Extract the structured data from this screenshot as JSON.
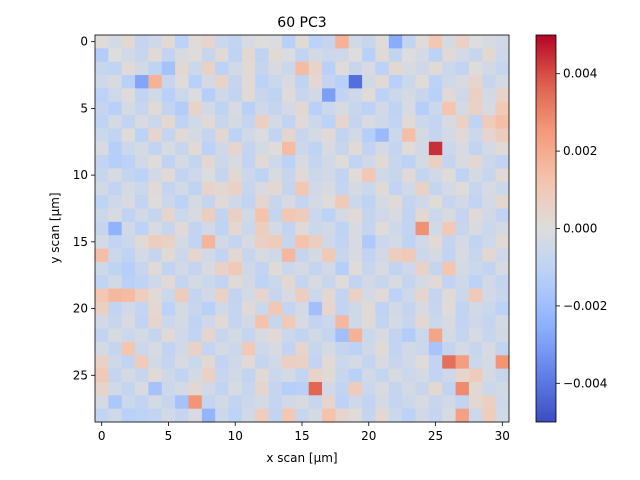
{
  "chart_data": {
    "type": "heatmap",
    "title": "60 PC3",
    "xlabel": "x scan [µm]",
    "ylabel": "y scan [µm]",
    "x_range": [
      0,
      30
    ],
    "y_range": [
      0,
      28
    ],
    "y_axis_inverted": true,
    "x_ticks": [
      "0",
      "5",
      "10",
      "15",
      "20",
      "25",
      "30"
    ],
    "y_ticks": [
      "0",
      "5",
      "10",
      "15",
      "20",
      "25"
    ],
    "colormap": "coolwarm",
    "vmin": -0.005,
    "vmax": 0.005,
    "colorbar_ticks": [
      "−0.004",
      "−0.002",
      "0.000",
      "0.002",
      "0.004"
    ],
    "colorbar_tick_values": [
      -0.004,
      -0.002,
      0.0,
      0.002,
      0.004
    ],
    "z": [
      [
        0.0001,
        -0.0003,
        0.0003,
        -0.0008,
        -0.0005,
        0.0002,
        -0.0011,
        0.0001,
        0.0004,
        -0.0006,
        -0.0009,
        -0.0002,
        0.0,
        -0.0001,
        -0.0012,
        0.0002,
        -0.0011,
        -0.0008,
        0.0018,
        -0.0004,
        -0.0007,
        0.0001,
        -0.0026,
        -0.0009,
        0.0001,
        0.0011,
        -0.0003,
        0.0006,
        0.0,
        -0.0002,
        -0.0004
      ],
      [
        -0.0014,
        0.0,
        -0.0004,
        -0.0007,
        0.0002,
        -0.0009,
        -0.0002,
        0.0001,
        -0.0007,
        0.0002,
        -0.001,
        0.0003,
        -0.001,
        0.0002,
        -0.0001,
        -0.0009,
        -0.0003,
        -0.0006,
        -0.0005,
        0.0,
        -0.0012,
        0.0002,
        -0.0009,
        0.0,
        -0.0003,
        -0.0011,
        0.0002,
        -0.0003,
        -0.0007,
        0.0003,
        -0.0005
      ],
      [
        -0.0007,
        -0.0009,
        0.0002,
        -0.0004,
        -0.001,
        -0.0018,
        0.0003,
        -0.0006,
        0.0006,
        -0.0011,
        -0.0004,
        0.0002,
        -0.0008,
        -0.0002,
        -0.0006,
        0.0015,
        0.0005,
        -0.0012,
        0.0001,
        -0.0007,
        -0.0002,
        -0.0011,
        0.0003,
        -0.0002,
        -0.0005,
        0.0002,
        -0.0006,
        -0.0009,
        0.0001,
        -0.0004,
        -0.0007
      ],
      [
        -0.0005,
        -0.0002,
        -0.0012,
        -0.0028,
        0.0018,
        -0.0007,
        0.0001,
        -0.0012,
        -0.0003,
        0.0005,
        -0.0008,
        0.0002,
        -0.0011,
        -0.0006,
        -0.0002,
        -0.001,
        0.0003,
        -0.0008,
        -0.0012,
        -0.0042,
        -0.0004,
        0.0002,
        -0.0012,
        -0.0006,
        0.0001,
        -0.0011,
        -0.0005,
        -0.0002,
        0.0004,
        -0.0007,
        -0.0003
      ],
      [
        -0.0011,
        -0.0005,
        0.0001,
        -0.0009,
        -0.0004,
        -0.0012,
        -0.0006,
        -0.0001,
        -0.0013,
        -0.0005,
        -0.0009,
        0.0002,
        -0.0007,
        -0.001,
        0.0001,
        -0.0007,
        -0.0004,
        -0.003,
        -0.0009,
        -0.0005,
        0.0001,
        -0.0011,
        -0.0006,
        -0.0003,
        -0.0007,
        -0.0012,
        0.0002,
        -0.0005,
        0.0007,
        -0.0003,
        0.0005
      ],
      [
        -0.0008,
        -0.0012,
        -0.0003,
        -0.0007,
        0.0002,
        -0.0009,
        -0.0014,
        0.0005,
        -0.0004,
        -0.001,
        -0.0002,
        -0.0012,
        -0.0005,
        -0.0008,
        -0.0003,
        0.0003,
        -0.0012,
        -0.0006,
        -0.0002,
        -0.0007,
        -0.0011,
        -0.0004,
        -0.001,
        -0.0002,
        -0.0013,
        -0.0006,
        0.0012,
        -0.0003,
        0.0006,
        -0.0002,
        0.001
      ],
      [
        -0.001,
        -0.0003,
        -0.0009,
        -0.0002,
        -0.0006,
        0.0003,
        -0.001,
        -0.0004,
        0.0002,
        -0.0007,
        -0.0003,
        -0.0008,
        0.0007,
        -0.0003,
        -0.0009,
        0.0002,
        -0.0006,
        -0.0011,
        0.0004,
        -0.0008,
        -0.0002,
        -0.0005,
        -0.0009,
        0.0002,
        -0.0006,
        -0.0008,
        -0.0002,
        0.0006,
        -0.001,
        0.0009,
        0.0014
      ],
      [
        -0.0006,
        -0.0009,
        0.0001,
        -0.0011,
        0.0004,
        -0.0008,
        0.0002,
        -0.0003,
        -0.0008,
        0.0003,
        -0.0011,
        -0.0004,
        -0.0001,
        -0.0009,
        0.0004,
        -0.0007,
        -0.0003,
        0.0002,
        -0.0009,
        -0.0004,
        -0.0013,
        -0.0021,
        -0.0006,
        0.0014,
        -0.0003,
        -0.0008,
        -0.0003,
        0.0002,
        -0.0006,
        0.0004,
        0.0009
      ],
      [
        -0.0002,
        -0.0013,
        -0.0006,
        -0.0003,
        -0.0009,
        -0.0002,
        -0.0007,
        0.0002,
        -0.0011,
        -0.0005,
        0.0004,
        -0.0008,
        -0.0003,
        0.0001,
        0.0015,
        -0.0006,
        -0.001,
        -0.0002,
        -0.0007,
        0.0002,
        -0.0009,
        -0.0003,
        -0.0008,
        0.0001,
        -0.0004,
        0.0044,
        -0.0006,
        -0.0002,
        -0.0009,
        -0.0003,
        0.0002
      ],
      [
        -0.0009,
        -0.0013,
        -0.0011,
        -0.0004,
        0.0001,
        -0.001,
        -0.0003,
        -0.0008,
        0.0003,
        -0.0006,
        -0.0002,
        -0.0009,
        0.0002,
        -0.0005,
        -0.0011,
        -0.0002,
        -0.0008,
        -0.0004,
        0.0001,
        -0.0009,
        -0.0005,
        0.0002,
        -0.0007,
        -0.0011,
        -0.0003,
        0.0007,
        -0.0008,
        -0.0002,
        0.0003,
        -0.0006,
        -0.0009
      ],
      [
        -0.0007,
        -0.0002,
        -0.0008,
        -0.0011,
        -0.0004,
        0.0002,
        -0.0009,
        -0.0005,
        -0.0001,
        -0.0008,
        0.0003,
        -0.0006,
        -0.001,
        -0.0002,
        -0.0007,
        0.0002,
        -0.0006,
        -0.0004,
        -0.0009,
        0.0001,
        0.0011,
        -0.0005,
        -0.0007,
        0.0002,
        -0.0008,
        -0.0004,
        0.0001,
        -0.001,
        -0.0003,
        -0.0007,
        0.0002
      ],
      [
        -0.0004,
        -0.0009,
        -0.0003,
        -0.0006,
        0.0002,
        -0.0008,
        -0.0004,
        -0.001,
        0.0005,
        0.0003,
        0.0006,
        -0.0007,
        -0.0002,
        0.0003,
        -0.0008,
        0.0011,
        -0.0004,
        -0.0002,
        -0.0008,
        -0.0003,
        -0.0006,
        0.0002,
        -0.0009,
        -0.0004,
        0.0006,
        -0.0008,
        -0.0003,
        0.0001,
        -0.0007,
        -0.0002,
        -0.0006
      ],
      [
        -0.001,
        -0.0005,
        -0.0002,
        -0.0009,
        0.0001,
        -0.0006,
        -0.0011,
        -0.0003,
        -0.0008,
        0.0002,
        -0.0005,
        -0.0009,
        0.0004,
        -0.0007,
        -0.0002,
        -0.0008,
        -0.0003,
        0.0001,
        0.001,
        -0.0006,
        -0.001,
        -0.0003,
        0.0002,
        -0.0008,
        -0.0005,
        0.0001,
        -0.0007,
        -0.0004,
        -0.0009,
        -0.0003,
        0.0003
      ],
      [
        -0.0006,
        -0.0002,
        -0.001,
        -0.0004,
        -0.0008,
        0.0004,
        -0.0006,
        -0.0002,
        0.0008,
        -0.0009,
        0.0007,
        -0.0004,
        0.0013,
        -0.0008,
        0.0011,
        0.0009,
        -0.0006,
        -0.0011,
        -0.0003,
        0.0002,
        -0.0008,
        -0.0005,
        -0.0002,
        -0.0009,
        0.0003,
        -0.0006,
        -0.0002,
        -0.0008,
        0.0002,
        -0.0004,
        -0.0009
      ],
      [
        -0.0008,
        -0.0024,
        -0.0004,
        -0.0011,
        -0.0002,
        -0.0007,
        0.0002,
        -0.0009,
        -0.0004,
        -0.001,
        0.0003,
        -0.0006,
        0.0008,
        -0.0003,
        -0.0009,
        0.0002,
        -0.0006,
        -0.0004,
        -0.001,
        -0.0002,
        -0.0008,
        0.0001,
        -0.0005,
        -0.0009,
        0.0027,
        -0.0004,
        0.001,
        -0.0007,
        -0.0002,
        -0.0006,
        -0.0003
      ],
      [
        -0.0003,
        -0.0009,
        -0.0006,
        0.0002,
        0.0008,
        0.0006,
        -0.0003,
        -0.0009,
        0.0017,
        -0.0004,
        -0.0008,
        -0.0002,
        0.0007,
        0.0009,
        -0.0007,
        0.0013,
        0.0008,
        -0.0005,
        -0.0009,
        -0.0002,
        -0.0015,
        -0.0006,
        -0.0003,
        -0.001,
        -0.0004,
        0.0002,
        -0.0008,
        -0.0003,
        -0.0009,
        -0.0005,
        0.0002
      ],
      [
        0.0014,
        -0.0006,
        -0.001,
        -0.0003,
        -0.0008,
        0.0002,
        -0.0006,
        0.0004,
        -0.0004,
        -0.0009,
        0.0003,
        -0.0007,
        -0.0002,
        -0.0005,
        0.0016,
        -0.0008,
        -0.0003,
        0.001,
        -0.0007,
        -0.0002,
        -0.0009,
        -0.0004,
        0.0008,
        0.001,
        -0.0006,
        -0.0003,
        -0.0009,
        -0.0002,
        -0.0007,
        0.0003,
        -0.0005
      ],
      [
        -0.0005,
        -0.001,
        -0.0013,
        -0.0007,
        0.0002,
        -0.0009,
        -0.0004,
        -0.0008,
        -0.0002,
        0.0006,
        0.001,
        -0.0005,
        -0.0009,
        0.0002,
        -0.0006,
        -0.0003,
        -0.0008,
        -0.0004,
        -0.0013,
        0.0001,
        -0.0007,
        -0.0002,
        -0.0009,
        -0.0005,
        0.0006,
        -0.0008,
        0.0012,
        -0.0003,
        -0.0006,
        -0.0009,
        -0.0002
      ],
      [
        -0.0009,
        -0.0004,
        -0.0012,
        -0.001,
        -0.0005,
        0.0002,
        -0.0008,
        -0.0003,
        -0.0006,
        -0.0009,
        0.0002,
        -0.0004,
        -0.001,
        -0.0006,
        0.0003,
        -0.0008,
        -0.0002,
        -0.0007,
        0.0001,
        -0.0009,
        -0.0004,
        -0.0007,
        -0.0002,
        -0.0008,
        -0.0003,
        0.0002,
        -0.0009,
        -0.0005,
        -0.0011,
        -0.0004,
        -0.0008
      ],
      [
        0.0011,
        0.0016,
        0.0015,
        0.0008,
        0.0002,
        -0.0006,
        0.0009,
        -0.0008,
        -0.0004,
        0.0006,
        -0.0009,
        -0.0003,
        0.0004,
        -0.0007,
        -0.0002,
        0.0008,
        -0.0006,
        0.0003,
        -0.0009,
        0.0006,
        -0.0003,
        0.0002,
        -0.0011,
        -0.0005,
        0.0004,
        -0.0008,
        0.0002,
        -0.0006,
        0.001,
        -0.0004,
        -0.0007
      ],
      [
        0.0007,
        -0.0009,
        -0.0004,
        -0.0008,
        0.0003,
        -0.0011,
        -0.0003,
        -0.0007,
        -0.0012,
        -0.0004,
        -0.0008,
        0.0002,
        -0.0006,
        0.0011,
        -0.0008,
        -0.0003,
        -0.0019,
        0.0004,
        -0.0009,
        -0.0005,
        0.0002,
        -0.001,
        -0.0004,
        -0.0008,
        -0.0002,
        -0.0007,
        0.0001,
        -0.0009,
        -0.0004,
        -0.0006,
        -0.0011
      ],
      [
        -0.0004,
        -0.0007,
        -0.0002,
        -0.0009,
        0.0004,
        -0.0006,
        -0.0003,
        -0.001,
        -0.0005,
        0.0002,
        -0.0008,
        -0.0004,
        0.0013,
        -0.0007,
        0.001,
        -0.0002,
        -0.0009,
        -0.0006,
        0.0016,
        -0.0005,
        0.0002,
        -0.0009,
        -0.0003,
        -0.0007,
        0.0003,
        -0.0006,
        -0.0002,
        -0.0009,
        -0.0005,
        -0.0008,
        -0.0003
      ],
      [
        -0.0009,
        -0.0002,
        -0.0006,
        -0.0003,
        -0.0008,
        0.0002,
        -0.0005,
        -0.0009,
        0.0004,
        -0.0007,
        -0.0003,
        -0.0008,
        -0.0002,
        0.0002,
        -0.0006,
        -0.0009,
        -0.0004,
        -0.0008,
        -0.0019,
        0.0018,
        -0.0006,
        -0.0002,
        -0.0009,
        -0.0014,
        -0.0006,
        0.0022,
        -0.0003,
        -0.0008,
        -0.0002,
        -0.0007,
        -0.0004
      ],
      [
        -0.0003,
        -0.0008,
        0.0012,
        -0.0006,
        -0.0002,
        -0.0009,
        -0.0004,
        0.0006,
        -0.0008,
        -0.0003,
        -0.0006,
        0.001,
        -0.0005,
        -0.0002,
        -0.0009,
        0.0004,
        -0.0007,
        -0.0003,
        -0.0008,
        -0.0011,
        -0.0005,
        0.0002,
        -0.0009,
        -0.0004,
        -0.0006,
        -0.0017,
        -0.0008,
        -0.0003,
        -0.0007,
        -0.0002,
        -0.0009
      ],
      [
        0.0006,
        -0.0005,
        -0.0009,
        0.0009,
        -0.0004,
        -0.0008,
        -0.0002,
        -0.0006,
        0.0003,
        -0.0009,
        -0.0005,
        0.0002,
        -0.0008,
        -0.0004,
        0.0007,
        0.0006,
        -0.0009,
        0.0002,
        -0.0006,
        -0.0003,
        -0.0008,
        -0.0002,
        -0.0007,
        -0.0004,
        0.0001,
        -0.0009,
        0.0034,
        0.0024,
        -0.0006,
        -0.0003,
        0.0026
      ],
      [
        0.001,
        -0.0008,
        -0.0003,
        -0.0007,
        0.0002,
        -0.0005,
        -0.0009,
        -0.0003,
        0.0006,
        -0.0007,
        -0.0004,
        -0.0009,
        0.0002,
        -0.0006,
        -0.0003,
        -0.0008,
        0.0005,
        0.0002,
        -0.0007,
        -0.0012,
        -0.0004,
        -0.0008,
        -0.0002,
        -0.0006,
        -0.0003,
        -0.0009,
        -0.0005,
        0.0004,
        0.0009,
        -0.0003,
        -0.0007
      ],
      [
        0.0005,
        -0.0004,
        -0.0008,
        -0.0002,
        -0.0018,
        -0.0006,
        -0.0003,
        0.0003,
        -0.0004,
        -0.0009,
        -0.0002,
        -0.0007,
        0.0004,
        -0.0008,
        -0.0013,
        -0.0012,
        0.0036,
        -0.0004,
        -0.0009,
        0.0009,
        -0.0006,
        -0.0002,
        -0.0008,
        -0.0003,
        -0.0007,
        0.0003,
        -0.0009,
        0.0028,
        0.0003,
        -0.0006,
        -0.0004
      ],
      [
        -0.0003,
        -0.0016,
        -0.0006,
        -0.0009,
        -0.0003,
        -0.0007,
        -0.0018,
        0.0026,
        -0.0008,
        -0.0004,
        -0.0009,
        -0.0006,
        -0.0003,
        -0.0008,
        -0.0004,
        -0.0002,
        -0.0007,
        0.0004,
        -0.0011,
        -0.0005,
        -0.0009,
        -0.0003,
        -0.0008,
        -0.0006,
        -0.0002,
        -0.0007,
        -0.0004,
        -0.0009,
        0.0003,
        0.0007,
        -0.0005
      ],
      [
        -0.0009,
        -0.0005,
        -0.0012,
        -0.0011,
        -0.0009,
        -0.0004,
        -0.0008,
        -0.0002,
        -0.0023,
        -0.0006,
        -0.0011,
        -0.0004,
        0.0008,
        -0.0009,
        0.0011,
        -0.0007,
        -0.0003,
        0.0013,
        0.0004,
        0.0001,
        -0.0008,
        0.0003,
        -0.0006,
        -0.0011,
        -0.0004,
        -0.0008,
        -0.0002,
        0.0023,
        -0.0006,
        0.0008,
        -0.0004
      ]
    ]
  }
}
